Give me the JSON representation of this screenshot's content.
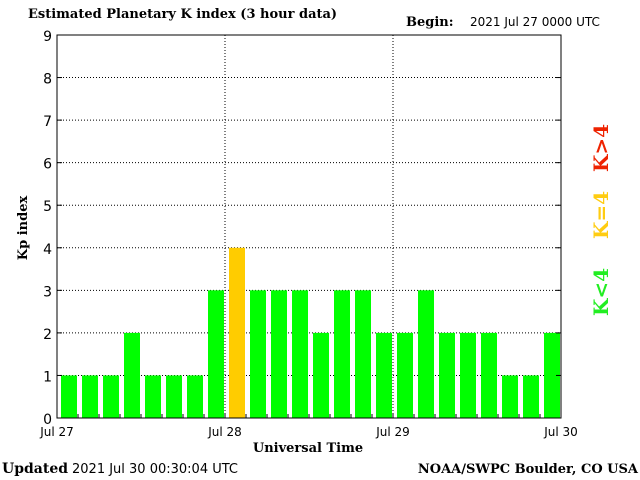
{
  "header": {
    "title": "Estimated Planetary K index (3 hour data)",
    "begin_label": "Begin:",
    "begin_value": "2021 Jul 27 0000 UTC"
  },
  "footer": {
    "updated_label": "Updated",
    "updated_value": "2021 Jul 30 00:30:04 UTC",
    "credit": "NOAA/SWPC Boulder, CO USA"
  },
  "legend": {
    "items": [
      {
        "label": "K<4",
        "color": "#22ee22"
      },
      {
        "label": "K=4",
        "color": "#ffcc11"
      },
      {
        "label": "K>4",
        "color": "#ee2200"
      }
    ]
  },
  "colors": {
    "below4": "#00ff00",
    "equal4": "#ffcc00",
    "above4": "#ff2200"
  },
  "chart_data": {
    "type": "bar",
    "title": "Estimated Planetary K index (3 hour data)",
    "xlabel": "Universal Time",
    "ylabel": "Kp index",
    "ylim": [
      0,
      9
    ],
    "yticks": [
      "0",
      "1",
      "2",
      "3",
      "4",
      "5",
      "6",
      "7",
      "8",
      "9"
    ],
    "xticks": [
      "Jul 27",
      "Jul 28",
      "Jul 29",
      "Jul 30"
    ],
    "grid": true,
    "interval_hours": 3,
    "values": [
      1,
      1,
      1,
      2,
      1,
      1,
      1,
      3,
      4,
      3,
      3,
      3,
      2,
      3,
      3,
      2,
      2,
      3,
      2,
      2,
      2,
      1,
      1,
      2
    ]
  }
}
